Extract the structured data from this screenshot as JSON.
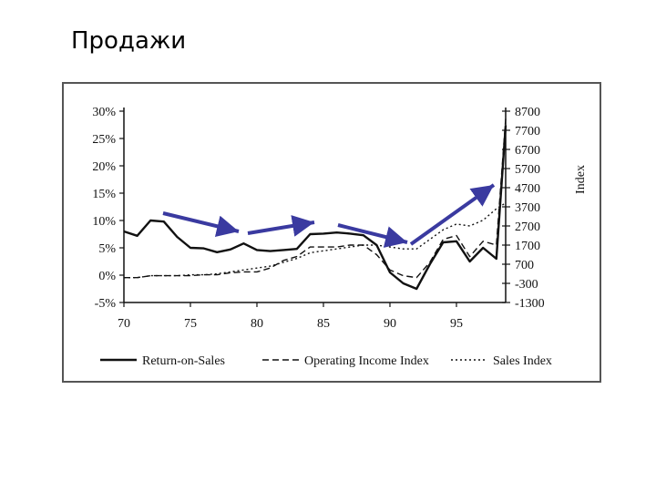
{
  "slide": {
    "title": "Продажи"
  },
  "colors": {
    "arrow": "#3a3aa0",
    "line": "#111111"
  },
  "chart_data": {
    "type": "line",
    "title": "",
    "xlabel": "",
    "ylabel": "",
    "y2label": "Index",
    "x_ticks": [
      "70",
      "75",
      "80",
      "85",
      "90",
      "95"
    ],
    "y_ticks": [
      "30%",
      "25%",
      "20%",
      "15%",
      "10%",
      "5%",
      "0%",
      "-5%"
    ],
    "y2_ticks": [
      "8700",
      "7700",
      "6700",
      "5700",
      "4700",
      "3700",
      "2700",
      "1700",
      "700",
      "-300",
      "-1300"
    ],
    "xlim": [
      70,
      98.7
    ],
    "ylim": [
      -5,
      30
    ],
    "y2lim": [
      -1300,
      8700
    ],
    "legend": {
      "position": "bottom"
    },
    "grid": false,
    "series": [
      {
        "name": "Return-on-Sales",
        "axis": "left",
        "style": "solid",
        "x": [
          70,
          71,
          72,
          73,
          74,
          75,
          76,
          77,
          78,
          79,
          80,
          81,
          82,
          83,
          84,
          85,
          86,
          87,
          88,
          89,
          90,
          91,
          92,
          93,
          94,
          95,
          96,
          97,
          98,
          98.7
        ],
        "y": [
          8,
          7.2,
          10,
          9.8,
          7,
          5,
          4.9,
          4.2,
          4.7,
          5.8,
          4.6,
          4.4,
          4.6,
          4.8,
          7.5,
          7.6,
          7.8,
          7.6,
          7.3,
          5.5,
          0.5,
          -1.5,
          -2.5,
          2,
          6,
          6.2,
          2.5,
          5,
          3,
          27.4
        ]
      },
      {
        "name": "Operating Income Index",
        "axis": "right",
        "style": "dashed",
        "x": [
          70,
          71,
          72,
          73,
          74,
          75,
          76,
          77,
          78,
          79,
          80,
          81,
          82,
          83,
          84,
          85,
          86,
          87,
          88,
          89,
          90,
          91,
          92,
          93,
          94,
          95,
          96,
          97,
          98,
          98.7
        ],
        "y": [
          0,
          0,
          100,
          100,
          100,
          100,
          150,
          150,
          250,
          300,
          300,
          500,
          900,
          1100,
          1600,
          1600,
          1600,
          1700,
          1700,
          1200,
          400,
          100,
          0,
          800,
          2000,
          2200,
          1100,
          1900,
          1700,
          8300
        ]
      },
      {
        "name": "Sales Index",
        "axis": "right",
        "style": "dotted",
        "x": [
          70,
          71,
          72,
          73,
          74,
          75,
          76,
          77,
          78,
          79,
          80,
          81,
          82,
          83,
          84,
          85,
          86,
          87,
          88,
          89,
          90,
          91,
          92,
          93,
          94,
          95,
          96,
          97,
          98,
          98.7
        ],
        "y": [
          0,
          0,
          100,
          100,
          100,
          150,
          150,
          200,
          300,
          400,
          500,
          600,
          800,
          1000,
          1300,
          1400,
          1500,
          1600,
          1700,
          1700,
          1600,
          1500,
          1500,
          2000,
          2500,
          2800,
          2700,
          3000,
          3600,
          3900
        ]
      }
    ]
  }
}
